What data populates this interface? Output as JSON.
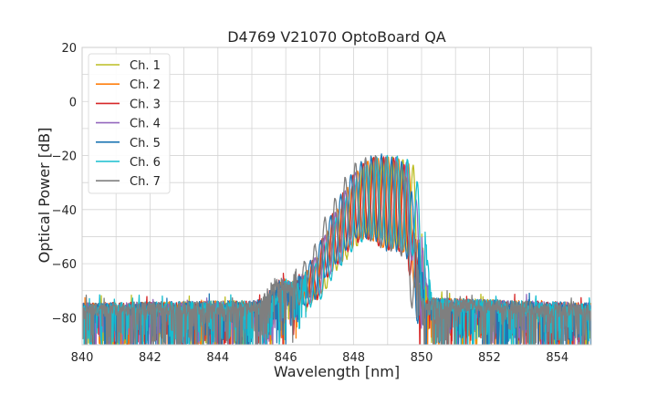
{
  "chart_data": {
    "type": "line",
    "title": "D4769 V21070 OptoBoard QA",
    "xlabel": "Wavelength [nm]",
    "ylabel": "Optical Power [dB]",
    "xlim": [
      840,
      855
    ],
    "ylim": [
      -90,
      20
    ],
    "xticks": [
      840,
      842,
      844,
      846,
      848,
      850,
      852,
      854
    ],
    "yticks": [
      20,
      0,
      -20,
      -40,
      -60,
      -80
    ],
    "xtick_labels": [
      "840",
      "842",
      "844",
      "846",
      "848",
      "850",
      "852",
      "854"
    ],
    "ytick_labels": [
      "20",
      "0",
      "−20",
      "−40",
      "−60",
      "−80"
    ],
    "grid": true,
    "legend_position": "top-left",
    "noise_floor_approx": -77,
    "series": [
      {
        "name": "Ch. 1",
        "color": "#bcbd22",
        "passband": [
          846.6,
          850.0
        ],
        "points": [
          [
            840.0,
            -77
          ],
          [
            845.5,
            -76
          ],
          [
            846.0,
            -69
          ],
          [
            846.4,
            -70
          ],
          [
            846.8,
            -60
          ],
          [
            847.1,
            -55
          ],
          [
            847.4,
            -44
          ],
          [
            847.7,
            -38
          ],
          [
            848.0,
            -30
          ],
          [
            848.3,
            -23
          ],
          [
            848.6,
            -21
          ],
          [
            848.9,
            -21
          ],
          [
            849.2,
            -20
          ],
          [
            849.5,
            -22
          ],
          [
            849.8,
            -24
          ],
          [
            850.0,
            -50
          ],
          [
            850.2,
            -75
          ],
          [
            855.0,
            -77
          ]
        ]
      },
      {
        "name": "Ch. 2",
        "color": "#ff7f0e",
        "passband": [
          846.5,
          849.9
        ],
        "points": [
          [
            840.0,
            -77
          ],
          [
            845.4,
            -76
          ],
          [
            845.9,
            -68
          ],
          [
            846.3,
            -69
          ],
          [
            846.7,
            -61
          ],
          [
            847.0,
            -56
          ],
          [
            847.3,
            -45
          ],
          [
            847.6,
            -38
          ],
          [
            847.9,
            -30
          ],
          [
            848.2,
            -24
          ],
          [
            848.5,
            -21
          ],
          [
            848.8,
            -21
          ],
          [
            849.1,
            -20
          ],
          [
            849.4,
            -21
          ],
          [
            849.7,
            -24
          ],
          [
            849.9,
            -50
          ],
          [
            850.1,
            -75
          ],
          [
            855.0,
            -77
          ]
        ]
      },
      {
        "name": "Ch. 3",
        "color": "#d62728",
        "passband": [
          846.4,
          849.8
        ],
        "points": [
          [
            840.0,
            -77
          ],
          [
            845.3,
            -76
          ],
          [
            845.8,
            -68
          ],
          [
            846.2,
            -70
          ],
          [
            846.6,
            -62
          ],
          [
            846.9,
            -57
          ],
          [
            847.2,
            -46
          ],
          [
            847.5,
            -39
          ],
          [
            847.8,
            -31
          ],
          [
            848.1,
            -25
          ],
          [
            848.4,
            -21
          ],
          [
            848.7,
            -20
          ],
          [
            849.0,
            -21
          ],
          [
            849.3,
            -21
          ],
          [
            849.6,
            -25
          ],
          [
            849.8,
            -50
          ],
          [
            850.0,
            -75
          ],
          [
            855.0,
            -77
          ]
        ]
      },
      {
        "name": "Ch. 4",
        "color": "#9467bd",
        "passband": [
          846.5,
          850.0
        ],
        "points": [
          [
            840.0,
            -77
          ],
          [
            845.4,
            -76
          ],
          [
            845.9,
            -68
          ],
          [
            846.3,
            -70
          ],
          [
            846.7,
            -61
          ],
          [
            847.0,
            -55
          ],
          [
            847.3,
            -45
          ],
          [
            847.6,
            -38
          ],
          [
            847.9,
            -29
          ],
          [
            848.2,
            -23
          ],
          [
            848.5,
            -21
          ],
          [
            848.8,
            -21
          ],
          [
            849.1,
            -20
          ],
          [
            849.4,
            -22
          ],
          [
            849.7,
            -24
          ],
          [
            850.0,
            -50
          ],
          [
            850.2,
            -75
          ],
          [
            855.0,
            -77
          ]
        ]
      },
      {
        "name": "Ch. 5",
        "color": "#1f77b4",
        "passband": [
          846.4,
          849.9
        ],
        "points": [
          [
            840.0,
            -77
          ],
          [
            845.3,
            -76
          ],
          [
            845.8,
            -68
          ],
          [
            846.2,
            -70
          ],
          [
            846.6,
            -61
          ],
          [
            846.9,
            -56
          ],
          [
            847.2,
            -45
          ],
          [
            847.5,
            -38
          ],
          [
            847.8,
            -30
          ],
          [
            848.1,
            -23
          ],
          [
            848.4,
            -21
          ],
          [
            848.7,
            -19
          ],
          [
            849.0,
            -21
          ],
          [
            849.3,
            -21
          ],
          [
            849.6,
            -24
          ],
          [
            849.9,
            -50
          ],
          [
            850.1,
            -75
          ],
          [
            855.0,
            -77
          ]
        ]
      },
      {
        "name": "Ch. 6",
        "color": "#17becf",
        "passband": [
          846.6,
          850.1
        ],
        "points": [
          [
            840.0,
            -77
          ],
          [
            845.5,
            -76
          ],
          [
            846.0,
            -68
          ],
          [
            846.4,
            -69
          ],
          [
            846.8,
            -61
          ],
          [
            847.1,
            -56
          ],
          [
            847.4,
            -45
          ],
          [
            847.7,
            -38
          ],
          [
            848.0,
            -30
          ],
          [
            848.3,
            -24
          ],
          [
            848.6,
            -21
          ],
          [
            848.9,
            -20
          ],
          [
            849.2,
            -20
          ],
          [
            849.5,
            -21
          ],
          [
            849.8,
            -23
          ],
          [
            850.1,
            -50
          ],
          [
            850.3,
            -75
          ],
          [
            855.0,
            -77
          ]
        ]
      },
      {
        "name": "Ch. 7",
        "color": "#7f7f7f",
        "passband": [
          846.3,
          849.8
        ],
        "points": [
          [
            840.0,
            -77
          ],
          [
            845.2,
            -76
          ],
          [
            845.7,
            -67
          ],
          [
            846.1,
            -69
          ],
          [
            846.5,
            -60
          ],
          [
            846.8,
            -55
          ],
          [
            847.1,
            -44
          ],
          [
            847.4,
            -37
          ],
          [
            847.7,
            -29
          ],
          [
            848.0,
            -23
          ],
          [
            848.3,
            -21
          ],
          [
            848.6,
            -20
          ],
          [
            848.9,
            -20
          ],
          [
            849.2,
            -22
          ],
          [
            849.5,
            -24
          ],
          [
            849.8,
            -50
          ],
          [
            850.0,
            -75
          ],
          [
            855.0,
            -77
          ]
        ]
      }
    ]
  }
}
